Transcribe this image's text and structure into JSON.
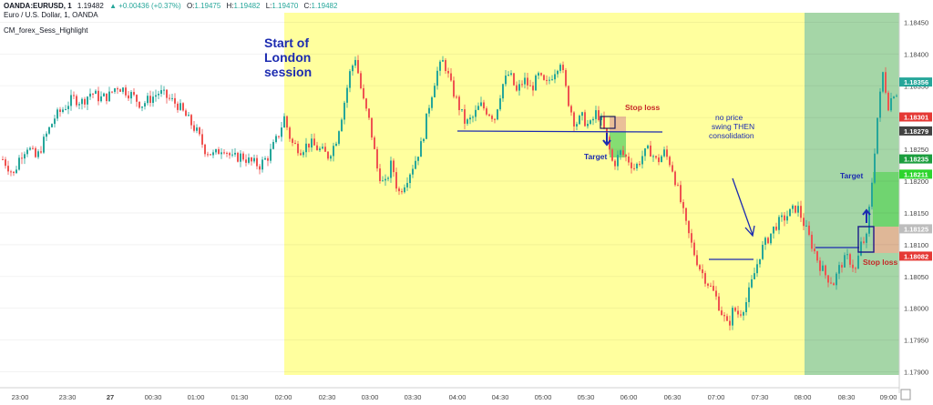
{
  "header": {
    "symbol": "OANDA:EURUSD, 1",
    "last": "1.19482",
    "change": "▲ +0.00436 (+0.37%)",
    "o_label": "O:",
    "o_value": "1.19475",
    "h_label": "H:",
    "h_value": "1.19482",
    "l_label": "L:",
    "l_value": "1.19470",
    "c_label": "C:",
    "c_value": "1.19482",
    "title_line": "Euro / U.S. Dollar, 1, OANDA",
    "indicator": "CM_forex_Sess_Highlight"
  },
  "colors": {
    "up": "#26a69a",
    "down": "#ef5350",
    "london_session": "#ffff9e",
    "ny_session": "#a5d6a7",
    "annotation_blue": "#1c2bb0",
    "stop_loss_text": "#c62828",
    "target_zone": "#66d466",
    "stop_zone": "#e6b496"
  },
  "annotations": {
    "london": [
      "Start of",
      "London",
      "session"
    ],
    "stop_loss_1": "Stop loss",
    "target_1": "Target",
    "note": [
      "no price",
      "swing THEN",
      "consolidation"
    ],
    "target_2": "Target",
    "stop_loss_2": "Stop loss"
  },
  "chart_data": {
    "type": "candlestick",
    "title": "Euro / U.S. Dollar, 1, OANDA",
    "x_tick_labels": [
      "23:00",
      "23:30",
      "27",
      "00:30",
      "01:00",
      "01:30",
      "02:00",
      "02:30",
      "03:00",
      "03:30",
      "04:00",
      "04:30",
      "05:00",
      "05:30",
      "06:00",
      "06:30",
      "07:00",
      "07:30",
      "08:00",
      "08:30",
      "09:00"
    ],
    "y_tick_labels": [
      "1.18450",
      "1.18400",
      "1.18350",
      "1.18300",
      "1.18250",
      "1.18200",
      "1.18150",
      "1.18100",
      "1.18050",
      "1.18000",
      "1.17950",
      "1.17900"
    ],
    "ylim": [
      1.17895,
      1.18465
    ],
    "price_markers": [
      {
        "label": "1.18356",
        "color": "#26a69a"
      },
      {
        "label": "1.18301",
        "color": "#e53935"
      },
      {
        "label": "1.18279",
        "color": "#424242"
      },
      {
        "label": "1.18235",
        "color": "#1b9e3e"
      },
      {
        "label": "1.18211",
        "color": "#2dd52d"
      },
      {
        "label": "1.18125",
        "color": "#bdbdbd"
      },
      {
        "label": "1.18082",
        "color": "#e53935"
      }
    ],
    "price_path": [
      [
        0,
        1.1824
      ],
      [
        8,
        1.18225
      ],
      [
        15,
        1.1821
      ],
      [
        22,
        1.1824
      ],
      [
        30,
        1.18255
      ],
      [
        40,
        1.18235
      ],
      [
        50,
        1.1827
      ],
      [
        60,
        1.183
      ],
      [
        70,
        1.18315
      ],
      [
        80,
        1.1833
      ],
      [
        90,
        1.18325
      ],
      [
        100,
        1.1834
      ],
      [
        110,
        1.1833
      ],
      [
        120,
        1.18335
      ],
      [
        128,
        1.1835
      ],
      [
        135,
        1.18345
      ],
      [
        145,
        1.18335
      ],
      [
        155,
        1.1832
      ],
      [
        165,
        1.1833
      ],
      [
        175,
        1.1834
      ],
      [
        185,
        1.1833
      ],
      [
        195,
        1.1832
      ],
      [
        205,
        1.183
      ],
      [
        215,
        1.1828
      ],
      [
        225,
        1.1825
      ],
      [
        235,
        1.1824
      ],
      [
        245,
        1.18255
      ],
      [
        255,
        1.18235
      ],
      [
        265,
        1.1824
      ],
      [
        275,
        1.1823
      ],
      [
        285,
        1.18225
      ],
      [
        295,
        1.1824
      ],
      [
        305,
        1.1827
      ],
      [
        312,
        1.183
      ],
      [
        320,
        1.1826
      ],
      [
        330,
        1.1825
      ],
      [
        340,
        1.1826
      ],
      [
        350,
        1.1825
      ],
      [
        360,
        1.1824
      ],
      [
        368,
        1.1826
      ],
      [
        376,
        1.1831
      ],
      [
        384,
        1.1837
      ],
      [
        390,
        1.18395
      ],
      [
        398,
        1.1833
      ],
      [
        406,
        1.1829
      ],
      [
        414,
        1.1822
      ],
      [
        422,
        1.1819
      ],
      [
        430,
        1.1823
      ],
      [
        437,
        1.1818
      ],
      [
        445,
        1.182
      ],
      [
        455,
        1.1823
      ],
      [
        463,
        1.1826
      ],
      [
        471,
        1.1832
      ],
      [
        479,
        1.1837
      ],
      [
        487,
        1.1839
      ],
      [
        495,
        1.1835
      ],
      [
        503,
        1.1832
      ],
      [
        511,
        1.1829
      ],
      [
        519,
        1.183
      ],
      [
        527,
        1.1832
      ],
      [
        535,
        1.1831
      ],
      [
        543,
        1.183
      ],
      [
        551,
        1.1835
      ],
      [
        559,
        1.1837
      ],
      [
        567,
        1.1834
      ],
      [
        575,
        1.1836
      ],
      [
        583,
        1.18345
      ],
      [
        591,
        1.18365
      ],
      [
        599,
        1.1835
      ],
      [
        607,
        1.1837
      ],
      [
        615,
        1.1839
      ],
      [
        623,
        1.1833
      ],
      [
        631,
        1.1829
      ],
      [
        639,
        1.183
      ],
      [
        647,
        1.18285
      ],
      [
        655,
        1.1831
      ],
      [
        661,
        1.1829
      ],
      [
        667,
        1.1826
      ],
      [
        673,
        1.18225
      ],
      [
        681,
        1.18245
      ],
      [
        689,
        1.18235
      ],
      [
        697,
        1.1822
      ],
      [
        705,
        1.1824
      ],
      [
        713,
        1.1825
      ],
      [
        721,
        1.1823
      ],
      [
        729,
        1.18245
      ],
      [
        737,
        1.18225
      ],
      [
        745,
        1.1818
      ],
      [
        753,
        1.1813
      ],
      [
        761,
        1.1809
      ],
      [
        769,
        1.1806
      ],
      [
        777,
        1.1804
      ],
      [
        785,
        1.1802
      ],
      [
        793,
        1.1799
      ],
      [
        799,
        1.1797
      ],
      [
        805,
        1.18
      ],
      [
        811,
        1.1799
      ],
      [
        819,
        1.1801
      ],
      [
        827,
        1.1805
      ],
      [
        835,
        1.1809
      ],
      [
        843,
        1.1811
      ],
      [
        851,
        1.1813
      ],
      [
        859,
        1.1814
      ],
      [
        867,
        1.1815
      ],
      [
        875,
        1.1816
      ],
      [
        883,
        1.1813
      ],
      [
        891,
        1.181
      ],
      [
        899,
        1.1807
      ],
      [
        907,
        1.1805
      ],
      [
        915,
        1.1804
      ],
      [
        923,
        1.1807
      ],
      [
        931,
        1.1808
      ],
      [
        939,
        1.1806
      ],
      [
        945,
        1.181
      ],
      [
        951,
        1.1811
      ],
      [
        957,
        1.182
      ],
      [
        963,
        1.183
      ],
      [
        969,
        1.1837
      ],
      [
        975,
        1.1832
      ],
      [
        981,
        1.1834
      ]
    ]
  }
}
